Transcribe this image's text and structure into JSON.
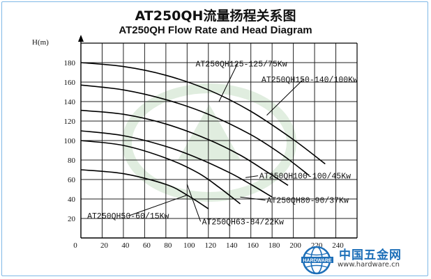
{
  "title_cn": "AT250QH流量扬程关系图",
  "title_en": "AT250QH Flow Rate and Head Diagram",
  "chart_data": {
    "type": "line",
    "ylabel": "H(m)",
    "xlabel": "",
    "xlim": [
      0,
      260
    ],
    "ylim": [
      0,
      200
    ],
    "x_ticks": [
      0,
      20,
      40,
      60,
      80,
      100,
      120,
      140,
      160,
      180,
      200,
      220,
      240
    ],
    "x_tick_labels": [
      "0",
      "20",
      "40",
      "60",
      "80",
      "100",
      "120",
      "140",
      "160",
      "180",
      "200",
      "220",
      "240"
    ],
    "y_ticks": [
      20,
      40,
      60,
      80,
      100,
      120,
      140,
      160,
      180
    ],
    "y_tick_labels": [
      "20",
      "40",
      "60",
      "80",
      "100",
      "120",
      "140",
      "160",
      "180"
    ],
    "grid": true,
    "series": [
      {
        "name": "AT250QH125-125/75Kw",
        "x": [
          0,
          40,
          80,
          120,
          160,
          200,
          230
        ],
        "y": [
          180,
          176,
          167,
          152,
          130,
          101,
          76
        ]
      },
      {
        "name": "AT250QH150-140/100Kw",
        "x": [
          0,
          40,
          80,
          120,
          160,
          190,
          215
        ],
        "y": [
          157,
          152,
          142,
          127,
          106,
          85,
          64
        ]
      },
      {
        "name": "AT250QH100-100/45Kw",
        "x": [
          0,
          40,
          80,
          120,
          150,
          175,
          195
        ],
        "y": [
          131,
          127,
          117,
          101,
          85,
          68,
          54
        ]
      },
      {
        "name": "AT250QH80-90/37Kw",
        "x": [
          0,
          40,
          80,
          110,
          140,
          160,
          180
        ],
        "y": [
          110,
          105,
          94,
          82,
          67,
          55,
          42
        ]
      },
      {
        "name": "AT250QH63-84/22Kw",
        "x": [
          0,
          40,
          80,
          110,
          130,
          150
        ],
        "y": [
          100,
          95,
          82,
          67,
          52,
          35
        ]
      },
      {
        "name": "AT250QH50-60/15Kw",
        "x": [
          0,
          40,
          80,
          100,
          120
        ],
        "y": [
          70,
          66,
          55,
          44,
          30
        ]
      }
    ],
    "labels": [
      {
        "text": "AT250QH125-125/75Kw",
        "x": 108,
        "y": 176,
        "target_x": 130,
        "target_y": 140
      },
      {
        "text": "AT250QH150-140/100Kw",
        "x": 170,
        "y": 160,
        "target_x": 175,
        "target_y": 126
      },
      {
        "text": "AT250QH100-100/45Kw",
        "x": 168,
        "y": 61,
        "target_x": 155,
        "target_y": 62
      },
      {
        "text": "AT250QH80-90/37Kw",
        "x": 175,
        "y": 36,
        "target_x": 150,
        "target_y": 42
      },
      {
        "text": "AT250QH63-84/22Kw",
        "x": 114,
        "y": 14,
        "target_x": 100,
        "target_y": 55
      },
      {
        "text": "AT250QH50-60/15Kw",
        "x": 6,
        "y": 20,
        "target_x": 100,
        "target_y": 44
      }
    ]
  },
  "brand": {
    "name_cn": "中国五金网",
    "url": "www.hardware.cn",
    "badge_text": "HARDWARE",
    "logo_icon": "globe-icon",
    "logo_color": "#1d6fb8"
  }
}
